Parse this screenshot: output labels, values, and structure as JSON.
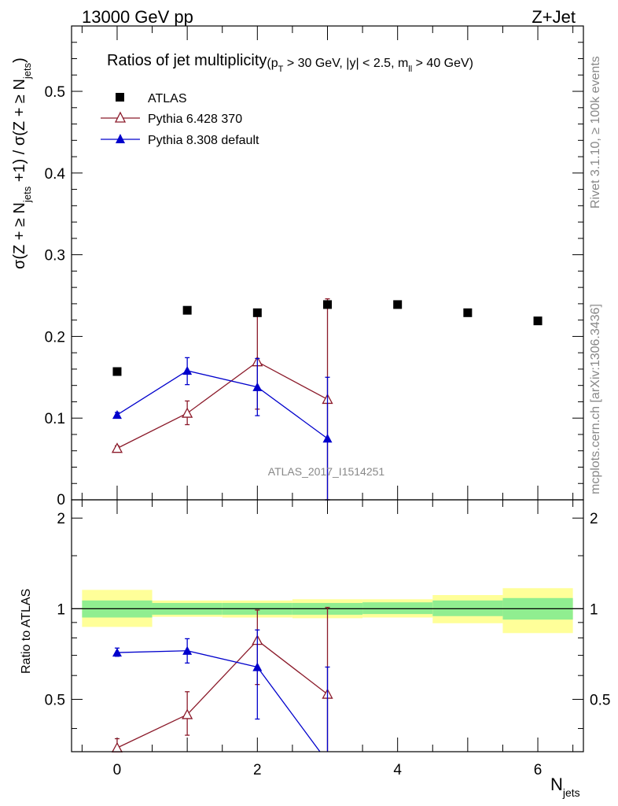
{
  "header": {
    "left": "13000 GeV pp",
    "right": "Z+Jet"
  },
  "side_text": {
    "rivet": "Rivet 3.1.10, ≥ 100k events",
    "mcplots": "mcplots.cern.ch [arXiv:1306.3436]"
  },
  "chart_data": [
    {
      "type": "scatter",
      "title": "Ratios of jet multiplicity",
      "title_cuts": "(p_T > 30 GeV, |y| < 2.5, m_ll > 40 GeV)",
      "ylabel": "σ(Z + ≥ N_jets +1) / σ(Z + ≥ N_jets)",
      "xlabel": "N_jets",
      "watermark": "ATLAS_2017_I1514251",
      "xlim": [
        -0.65,
        6.65
      ],
      "ylim": [
        0,
        0.58
      ],
      "x_ticks": [
        0,
        2,
        4,
        6
      ],
      "y_ticks": [
        0.1,
        0.2,
        0.3,
        0.4,
        0.5
      ],
      "y_tick_labels": [
        "0.1",
        "0.2",
        "0.3",
        "0.4",
        "0.5"
      ],
      "y_zero_label": "0",
      "legend": {
        "position": "top-left",
        "entries": [
          {
            "name": "ATLAS",
            "marker": "square",
            "color": "#000000"
          },
          {
            "name": "Pythia 6.428 370",
            "marker": "open-triangle",
            "color": "#8b1a2a"
          },
          {
            "name": "Pythia 8.308 default",
            "marker": "filled-triangle",
            "color": "#0000cc"
          }
        ]
      },
      "series": [
        {
          "name": "ATLAS",
          "x": [
            0,
            1,
            2,
            3,
            4,
            5,
            6
          ],
          "y": [
            0.157,
            0.232,
            0.229,
            0.239,
            0.239,
            0.229,
            0.219
          ]
        },
        {
          "name": "Pythia 6.428 370",
          "x": [
            0,
            1,
            2,
            3
          ],
          "y": [
            0.063,
            0.106,
            0.169,
            0.123
          ],
          "y_low": [
            0.06,
            0.092,
            0.111,
            0.0
          ],
          "y_high": [
            0.066,
            0.121,
            0.227,
            0.246
          ]
        },
        {
          "name": "Pythia 8.308 default",
          "x": [
            0,
            1,
            2,
            3
          ],
          "y": [
            0.104,
            0.158,
            0.138,
            0.075
          ],
          "y_low": [
            0.101,
            0.141,
            0.103,
            0.0
          ],
          "y_high": [
            0.107,
            0.174,
            0.173,
            0.15
          ]
        }
      ]
    },
    {
      "type": "scatter",
      "ylabel": "Ratio to ATLAS",
      "xlim": [
        -0.65,
        6.65
      ],
      "ylim": [
        0.335,
        2.3
      ],
      "y_ticks": [
        0.5,
        1,
        2
      ],
      "y_tick_labels": [
        "0.5",
        "1",
        "2"
      ],
      "reference_line": 1,
      "bands": {
        "bin_edges": [
          -0.5,
          0.5,
          1.5,
          2.5,
          3.5,
          4.5,
          5.5,
          6.5
        ],
        "inner_low": [
          0.935,
          0.955,
          0.955,
          0.955,
          0.96,
          0.945,
          0.92,
          0.84
        ],
        "inner_high": [
          1.065,
          1.045,
          1.045,
          1.045,
          1.05,
          1.065,
          1.085,
          1.23
        ],
        "outer_low": [
          0.87,
          0.94,
          0.935,
          0.93,
          0.935,
          0.895,
          0.83,
          0.62
        ],
        "outer_high": [
          1.155,
          1.065,
          1.065,
          1.075,
          1.075,
          1.11,
          1.17,
          1.42
        ],
        "inner_color": "#90ee90",
        "outer_color": "#ffff99"
      },
      "series": [
        {
          "name": "Pythia 6.428 370",
          "x": [
            0,
            1,
            2,
            3
          ],
          "y": [
            0.345,
            0.445,
            0.785,
            0.52
          ],
          "y_low": [
            0.32,
            0.38,
            0.56,
            0.0
          ],
          "y_high": [
            0.37,
            0.53,
            0.99,
            1.01
          ]
        },
        {
          "name": "Pythia 8.308 default",
          "x": [
            0,
            1,
            2,
            3
          ],
          "y": [
            0.715,
            0.725,
            0.64,
            0.31
          ],
          "y_low": [
            0.695,
            0.66,
            0.43,
            0.0
          ],
          "y_high": [
            0.74,
            0.795,
            0.85,
            0.64
          ]
        }
      ]
    }
  ]
}
